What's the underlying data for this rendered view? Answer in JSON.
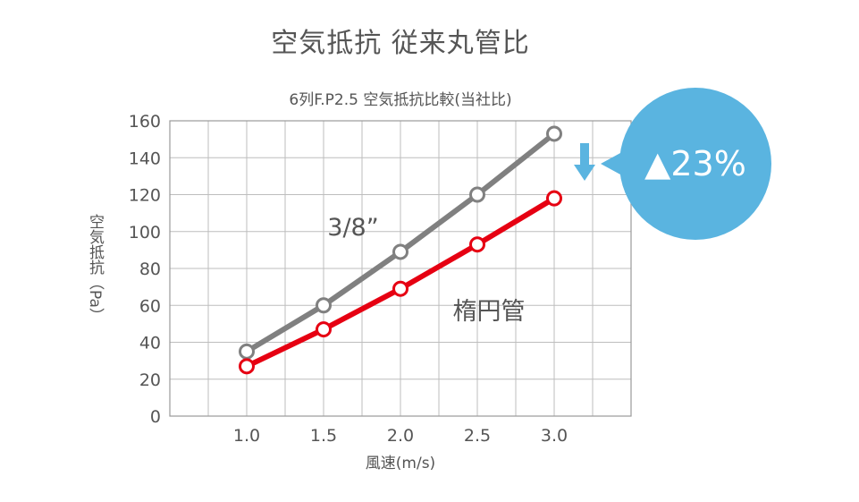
{
  "page": {
    "title": "空気抵抗 従来丸管比"
  },
  "chart_data": {
    "type": "line",
    "title": "6列F.P2.5 空気抵抗比較(当社比)",
    "xlabel": "風速(m/s)",
    "ylabel": "空気抵抗（Pa）",
    "x": [
      1.0,
      1.5,
      2.0,
      2.5,
      3.0
    ],
    "x_tick_labels": [
      "1.0",
      "1.5",
      "2.0",
      "2.5",
      "3.0"
    ],
    "xlim": [
      0.5,
      3.5
    ],
    "ylim": [
      0,
      160
    ],
    "y_ticks": [
      0,
      20,
      40,
      60,
      80,
      100,
      120,
      140,
      160
    ],
    "grid": true,
    "series": [
      {
        "name": "3/8”",
        "values": [
          35,
          60,
          89,
          120,
          153
        ],
        "color": "#808080"
      },
      {
        "name": "楕円管",
        "values": [
          27,
          47,
          69,
          93,
          118
        ],
        "color": "#e60012"
      }
    ],
    "annotation": {
      "text": "▲23%",
      "color": "#5ab4e0"
    }
  }
}
